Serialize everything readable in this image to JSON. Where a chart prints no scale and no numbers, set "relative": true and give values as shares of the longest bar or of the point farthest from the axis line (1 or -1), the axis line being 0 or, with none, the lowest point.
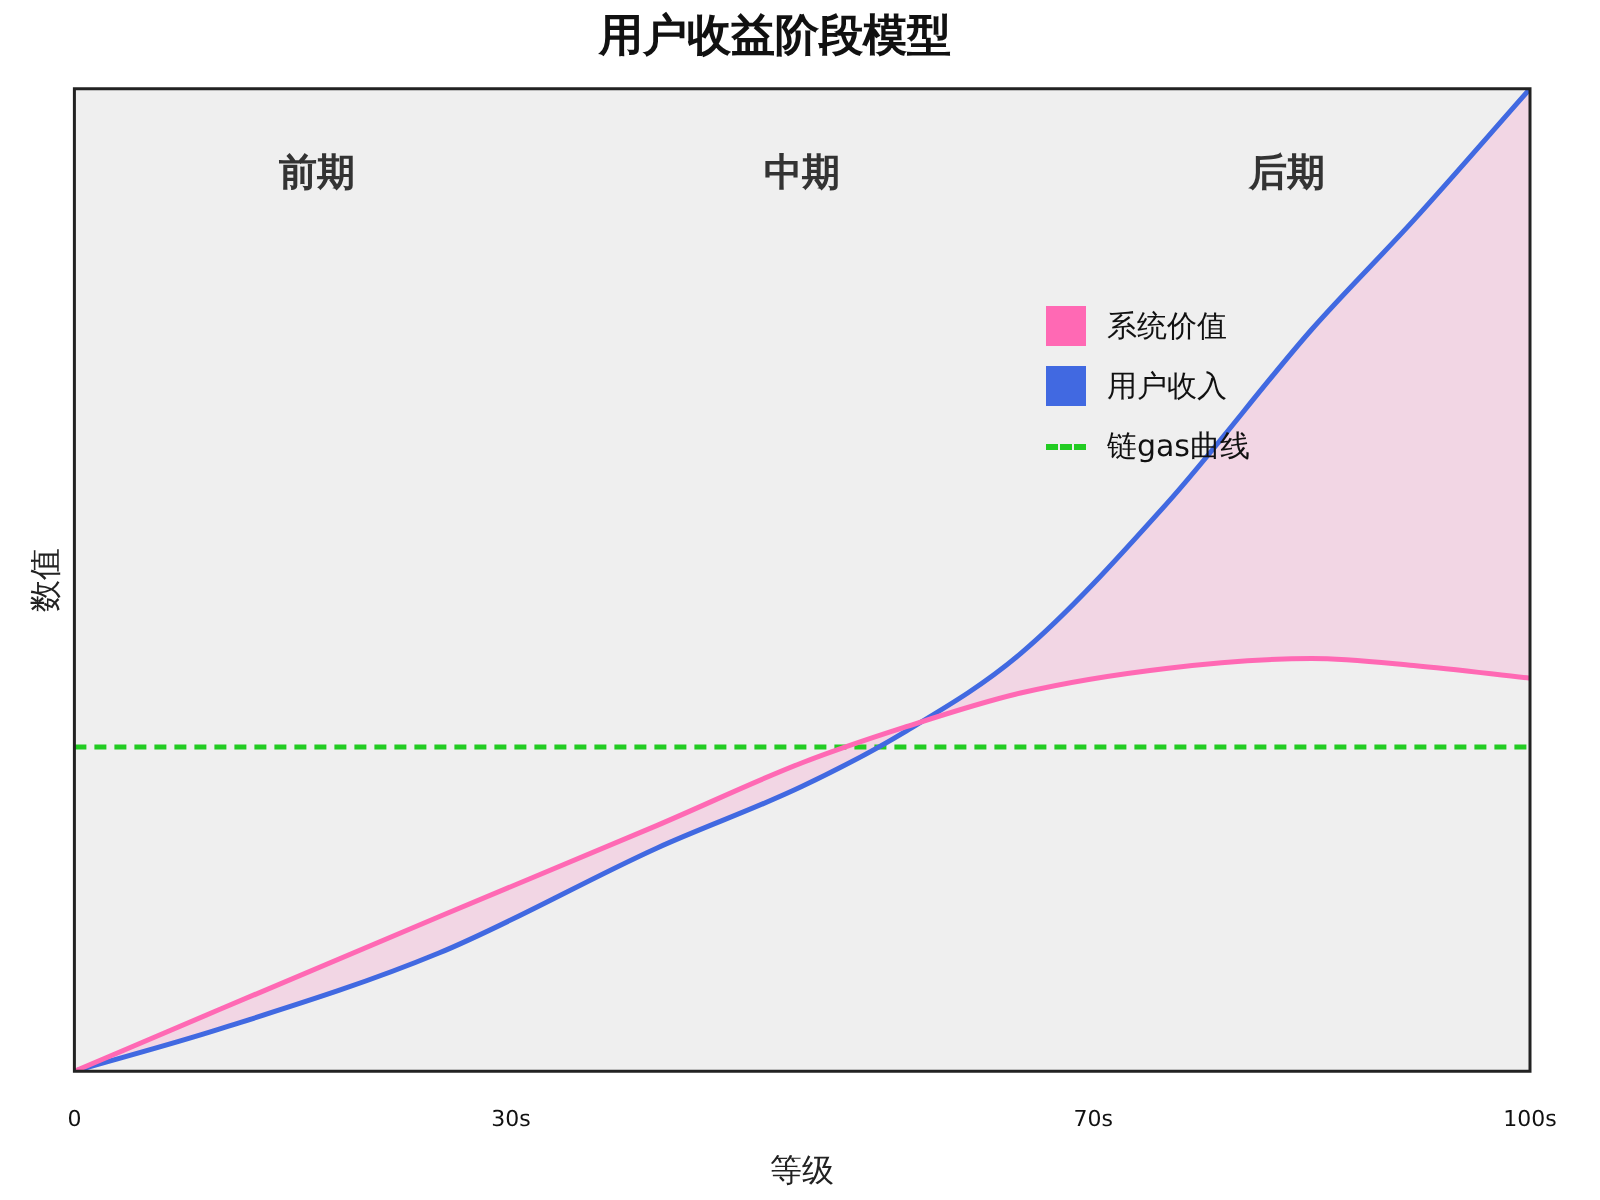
{
  "chart_data": {
    "type": "line",
    "title": "用户收益阶段模型",
    "xlabel": "等级",
    "ylabel": "数值",
    "relative": true,
    "xlim": [
      0,
      100
    ],
    "xticks": [
      0,
      {
        "value": 30,
        "label": "30s"
      },
      {
        "value": 70,
        "label": "70s"
      },
      {
        "value": 100,
        "label": "100s"
      }
    ],
    "x": [
      0,
      10,
      25,
      40,
      50,
      57,
      65,
      75,
      85,
      92,
      100
    ],
    "series": [
      {
        "name": "系统价值",
        "color": "#ff69b4",
        "values": [
          0,
          0.063,
          0.157,
          0.25,
          0.314,
          0.35,
          0.385,
          0.41,
          0.42,
          0.413,
          0.4
        ],
        "lower": [
          0,
          0.063,
          0.157,
          0.25,
          0.314,
          0.35,
          0.385,
          0.41,
          0.42,
          0.413,
          0.4
        ],
        "upper": [
          0,
          0.043,
          0.12,
          0.227,
          0.29,
          0.345,
          0.425,
          0.577,
          0.755,
          0.866,
          1
        ]
      },
      {
        "name": "用户收入",
        "color": "#4169e1",
        "values": [
          0,
          0.043,
          0.12,
          0.227,
          0.29,
          0.345,
          0.425,
          0.577,
          0.755,
          0.866,
          1
        ]
      }
    ],
    "ref_lines": [
      {
        "axis": "y",
        "value": 0.33,
        "label": "链gas曲线",
        "color": "#22cc22",
        "line_style": "dashed"
      }
    ],
    "annotations": [
      "前期",
      "中期",
      "后期"
    ],
    "legend": "top right",
    "grid": false,
    "marker": "none",
    "line_style": "solid"
  }
}
